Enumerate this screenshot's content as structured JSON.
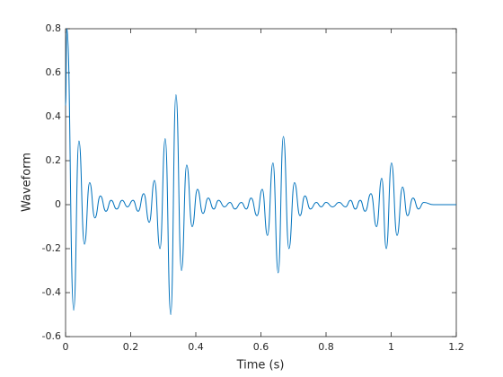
{
  "chart_data": {
    "type": "line",
    "xlabel": "Time (s)",
    "ylabel": "Waveform",
    "x": [
      0,
      0.004,
      0.025,
      0.041,
      0.058,
      0.074,
      0.09,
      0.107,
      0.124,
      0.14,
      0.157,
      0.174,
      0.19,
      0.207,
      0.223,
      0.24,
      0.257,
      0.273,
      0.29,
      0.306,
      0.323,
      0.339,
      0.356,
      0.372,
      0.389,
      0.405,
      0.422,
      0.438,
      0.455,
      0.47,
      0.488,
      0.505,
      0.52,
      0.54,
      0.555,
      0.57,
      0.588,
      0.604,
      0.62,
      0.637,
      0.653,
      0.669,
      0.686,
      0.703,
      0.72,
      0.735,
      0.752,
      0.77,
      0.785,
      0.8,
      0.82,
      0.84,
      0.86,
      0.875,
      0.89,
      0.905,
      0.92,
      0.938,
      0.955,
      0.971,
      0.985,
      1.001,
      1.018,
      1.035,
      1.05,
      1.067,
      1.084,
      1.1,
      1.13,
      1.2
    ],
    "values": [
      0.45,
      0.8,
      -0.48,
      0.29,
      -0.18,
      0.1,
      -0.06,
      0.04,
      -0.03,
      0.02,
      -0.02,
      0.02,
      -0.01,
      0.02,
      -0.03,
      0.05,
      -0.08,
      0.11,
      -0.2,
      0.3,
      -0.5,
      0.5,
      -0.3,
      0.18,
      -0.1,
      0.07,
      -0.04,
      0.03,
      -0.02,
      0.02,
      -0.01,
      0.01,
      -0.02,
      0.01,
      -0.02,
      0.03,
      -0.05,
      0.07,
      -0.14,
      0.19,
      -0.31,
      0.31,
      -0.2,
      0.1,
      -0.05,
      0.04,
      -0.02,
      0.01,
      -0.01,
      0.01,
      -0.01,
      0.01,
      -0.01,
      0.02,
      -0.02,
      0.02,
      -0.03,
      0.05,
      -0.1,
      0.12,
      -0.2,
      0.19,
      -0.14,
      0.08,
      -0.05,
      0.03,
      -0.02,
      0.01,
      0,
      0
    ],
    "color": "#0072bd",
    "xlim": [
      0,
      1.2
    ],
    "xticks": [
      0,
      0.2,
      0.4,
      0.6,
      0.8,
      1,
      1.2
    ],
    "ylim": [
      -0.6,
      0.8
    ],
    "yticks": [
      -0.6,
      -0.4,
      -0.2,
      0,
      0.2,
      0.4,
      0.6,
      0.8
    ],
    "grid": false
  }
}
